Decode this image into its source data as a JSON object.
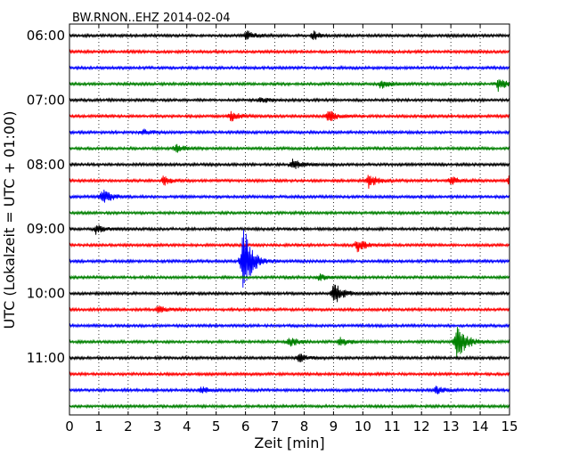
{
  "chart_data": {
    "type": "line",
    "title": "BW.RNON..EHZ 2014-02-04",
    "xlabel": "Zeit  [min]",
    "ylabel": "UTC (Lokalzeit = UTC + 01:00)",
    "xlim": [
      0,
      15
    ],
    "x_ticks": [
      "0",
      "1",
      "2",
      "3",
      "4",
      "5",
      "6",
      "7",
      "8",
      "9",
      "10",
      "11",
      "12",
      "13",
      "14",
      "15"
    ],
    "y_ticks": [
      "06:00",
      "07:00",
      "08:00",
      "09:00",
      "10:00",
      "11:00"
    ],
    "grid": "vertical-dotted",
    "trace_minutes_per_line": 15,
    "start_time": "06:00",
    "trace_colors": [
      "#000000",
      "#ff0000",
      "#0000ff",
      "#008000"
    ],
    "traces": [
      {
        "row": 0,
        "events": [
          [
            6.0,
            1.5
          ],
          [
            8.3,
            1.2
          ]
        ]
      },
      {
        "row": 1,
        "events": []
      },
      {
        "row": 2,
        "events": []
      },
      {
        "row": 3,
        "events": [
          [
            10.6,
            1.3
          ],
          [
            14.6,
            2.0
          ]
        ]
      },
      {
        "row": 4,
        "events": [
          [
            6.5,
            1.0
          ]
        ]
      },
      {
        "row": 5,
        "events": [
          [
            5.5,
            1.5
          ],
          [
            8.8,
            1.8
          ]
        ]
      },
      {
        "row": 6,
        "events": [
          [
            2.5,
            1.0
          ]
        ]
      },
      {
        "row": 7,
        "events": [
          [
            3.6,
            1.2
          ]
        ]
      },
      {
        "row": 8,
        "events": [
          [
            7.6,
            1.6
          ]
        ]
      },
      {
        "row": 9,
        "events": [
          [
            3.2,
            1.3
          ],
          [
            10.2,
            2.0
          ],
          [
            13.0,
            1.3
          ],
          [
            15.0,
            2.0
          ]
        ]
      },
      {
        "row": 10,
        "events": [
          [
            1.1,
            2.8
          ]
        ]
      },
      {
        "row": 11,
        "events": []
      },
      {
        "row": 12,
        "events": [
          [
            0.9,
            1.3
          ]
        ]
      },
      {
        "row": 13,
        "events": [
          [
            9.8,
            2.0
          ]
        ]
      },
      {
        "row": 14,
        "events": [
          [
            5.9,
            12.0
          ]
        ]
      },
      {
        "row": 15,
        "events": [
          [
            8.5,
            1.0
          ]
        ]
      },
      {
        "row": 16,
        "events": [
          [
            9.0,
            3.5
          ]
        ]
      },
      {
        "row": 17,
        "events": [
          [
            3.0,
            1.0
          ]
        ]
      },
      {
        "row": 18,
        "events": []
      },
      {
        "row": 19,
        "events": [
          [
            7.5,
            1.5
          ],
          [
            9.2,
            1.5
          ],
          [
            13.2,
            7.0
          ]
        ]
      },
      {
        "row": 20,
        "events": [
          [
            7.8,
            1.2
          ]
        ]
      },
      {
        "row": 21,
        "events": []
      },
      {
        "row": 22,
        "events": [
          [
            4.5,
            1.0
          ],
          [
            12.5,
            1.2
          ]
        ]
      },
      {
        "row": 23,
        "events": []
      }
    ]
  }
}
